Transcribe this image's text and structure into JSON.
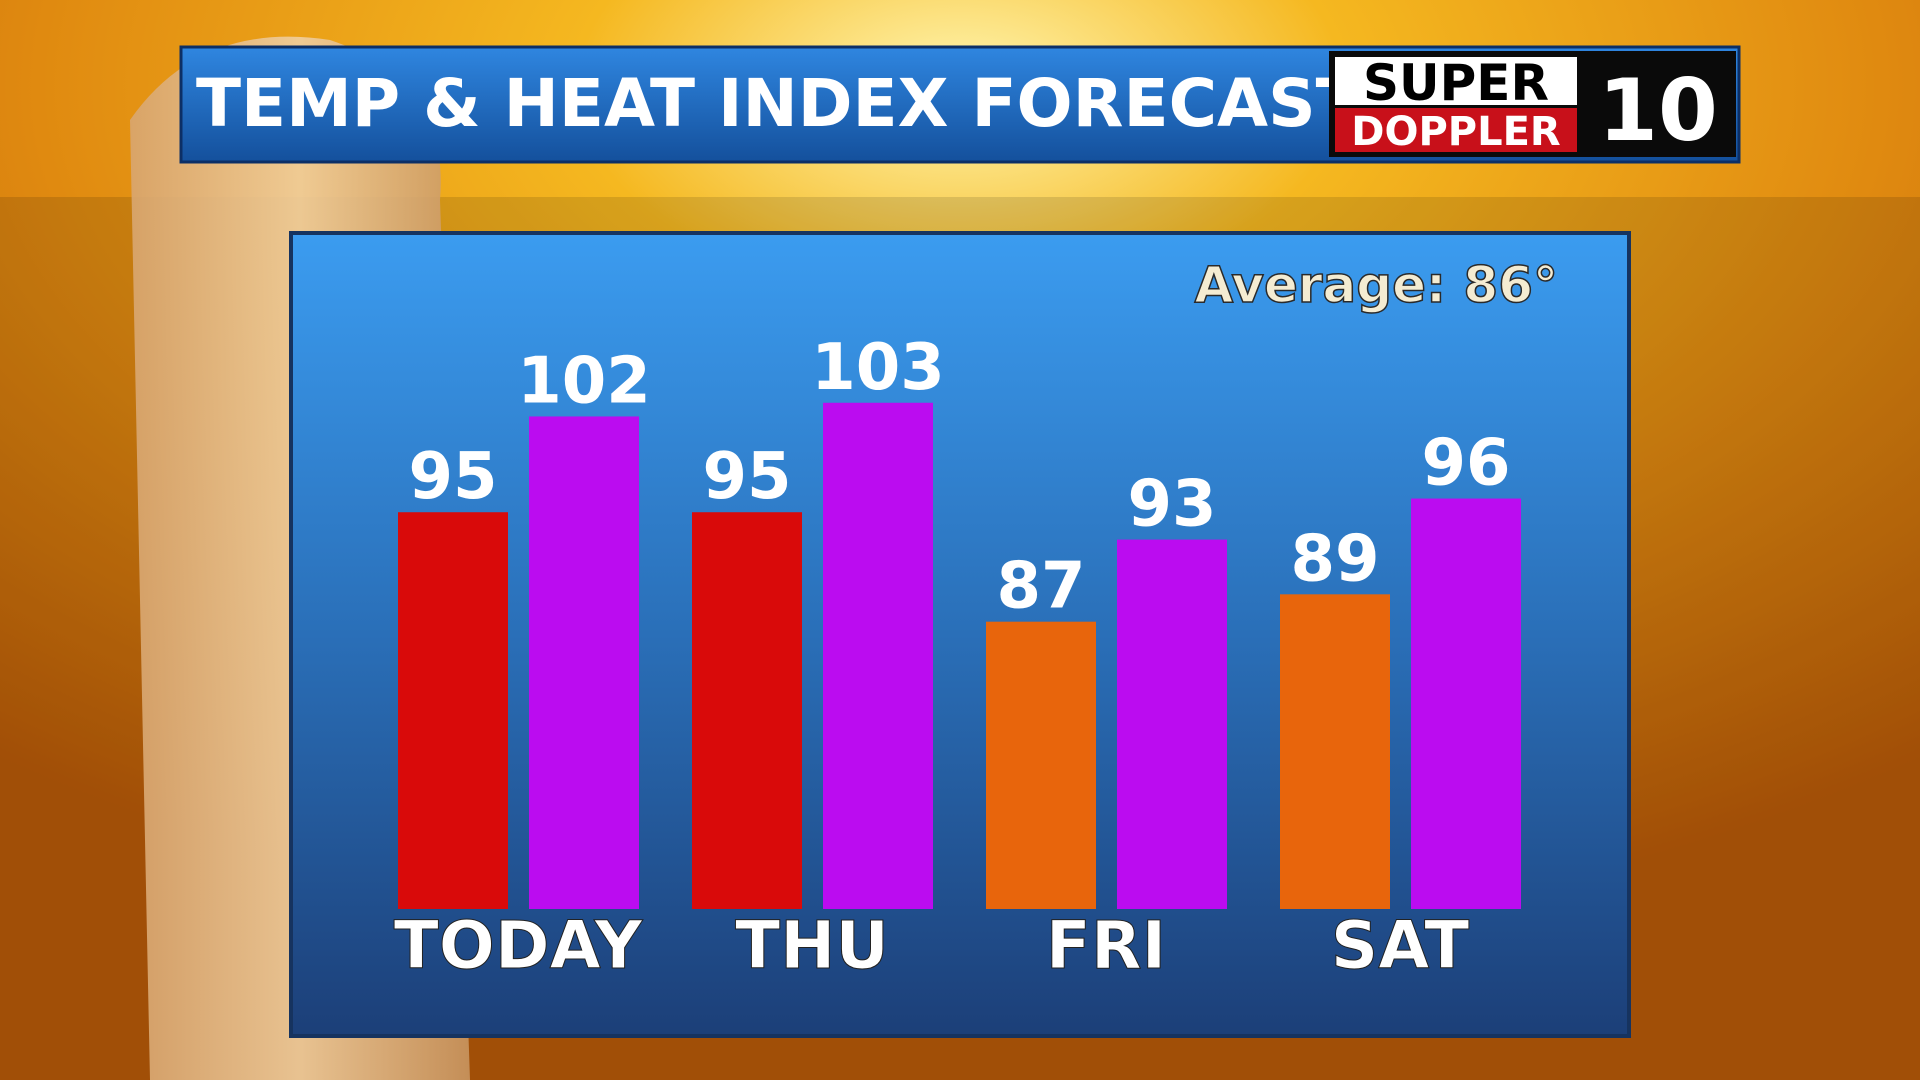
{
  "chart_data": {
    "type": "bar",
    "title": "TEMP & HEAT INDEX FORECAST",
    "annotation": "Average: 86°",
    "logo": {
      "top": "SUPER",
      "bottom": "DOPPLER",
      "number": "10"
    },
    "categories": [
      "TODAY",
      "THU",
      "FRI",
      "SAT"
    ],
    "series": [
      {
        "colors": [
          "#d90a0a",
          "#d90a0a",
          "#e8650c",
          "#e8650c"
        ],
        "values": [
          95,
          95,
          87,
          89
        ]
      },
      {
        "colors": [
          "#bb0cf0",
          "#bb0cf0",
          "#bb0cf0",
          "#bb0cf0"
        ],
        "values": [
          102,
          103,
          93,
          96
        ]
      }
    ],
    "ylim": [
      66,
      110
    ]
  }
}
